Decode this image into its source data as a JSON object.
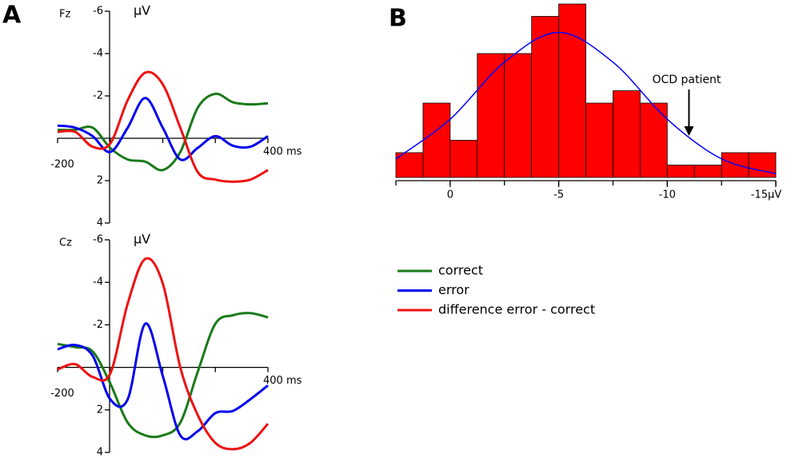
{
  "panel_labels": [
    "A",
    "B"
  ],
  "chart_data": [
    {
      "type": "line",
      "title": "Fz",
      "y_label": "µV",
      "x": [
        -200,
        -150,
        -100,
        -50,
        0,
        50,
        100,
        150,
        200,
        250,
        300,
        350,
        400
      ],
      "xlim": [
        -200,
        400
      ],
      "xticks": [
        -200,
        {
          "value": 400,
          "label": "400 ms"
        }
      ],
      "ylim": [
        4,
        -6
      ],
      "yticks": [
        -6,
        -4,
        -2,
        2,
        4
      ],
      "series": [
        {
          "name": "correct",
          "color": "#1a7a1a",
          "values": [
            -0.4,
            -0.4,
            -0.5,
            0.45,
            1.0,
            1.1,
            1.5,
            0.65,
            -1.45,
            -2.1,
            -1.7,
            -1.6,
            -1.65
          ]
        },
        {
          "name": "error",
          "color": "#0000ee",
          "values": [
            -0.6,
            -0.5,
            -0.1,
            0.65,
            -0.5,
            -1.9,
            -0.5,
            1.0,
            0.45,
            -0.1,
            0.35,
            0.4,
            -0.1
          ]
        },
        {
          "name": "difference error - correct",
          "color": "#ee1111",
          "values": [
            -0.3,
            -0.3,
            0.4,
            0.25,
            -1.8,
            -3.1,
            -2.55,
            -0.5,
            1.6,
            1.95,
            2.05,
            1.95,
            1.5
          ]
        }
      ]
    },
    {
      "type": "line",
      "title": "Cz",
      "y_label": "µV",
      "x": [
        -200,
        -150,
        -100,
        -50,
        0,
        50,
        100,
        150,
        200,
        250,
        300,
        350,
        400
      ],
      "xlim": [
        -200,
        400
      ],
      "xticks": [
        -200,
        {
          "value": 400,
          "label": "400 ms"
        }
      ],
      "ylim": [
        4,
        -6
      ],
      "yticks": [
        -6,
        -4,
        -2,
        2,
        4
      ],
      "series": [
        {
          "color": "#1a7a1a",
          "values": [
            -1.1,
            -0.95,
            -0.75,
            0.75,
            2.6,
            3.2,
            3.2,
            2.6,
            0.2,
            -2.05,
            -2.45,
            -2.55,
            -2.35
          ]
        },
        {
          "color": "#0000ee",
          "values": [
            -0.85,
            -1.05,
            -0.55,
            1.5,
            1.5,
            -2.05,
            0.4,
            3.2,
            3.0,
            2.15,
            2.05,
            1.5,
            0.85
          ]
        },
        {
          "color": "#ee1111",
          "values": [
            0.1,
            -0.15,
            0.45,
            0.3,
            -3.0,
            -5.1,
            -3.95,
            0,
            2.25,
            3.55,
            3.85,
            3.55,
            2.65
          ]
        }
      ]
    },
    {
      "type": "histogram",
      "bins": [
        2.5,
        1.25,
        0,
        -1.25,
        -2.5,
        -3.75,
        -5,
        -6.25,
        -7.5,
        -8.75,
        -10,
        -11.25,
        -12.5,
        -13.75,
        -15
      ],
      "counts": [
        2,
        6,
        3,
        10,
        10,
        13,
        14,
        6,
        7,
        6,
        1,
        1,
        2,
        2
      ],
      "color": "#ff0000",
      "xlim": [
        2.5,
        -15
      ],
      "xticks": [
        0,
        -5,
        -10,
        {
          "value": -15,
          "label": "-15µV"
        }
      ],
      "curve": {
        "color": "#0000ff",
        "x": [
          2.5,
          0,
          -2.5,
          -5,
          -7.5,
          -10,
          -12.5,
          -15
        ],
        "values": [
          1.5,
          4.7,
          9.3,
          11.7,
          9.3,
          4.7,
          1.5,
          0.3
        ]
      },
      "annotations": [
        {
          "text": "OCD patient",
          "x": -11
        }
      ]
    }
  ]
}
